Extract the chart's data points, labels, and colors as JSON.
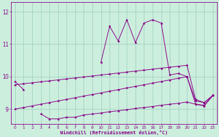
{
  "xlabel": "Windchill (Refroidissement éolien,°C)",
  "background_color": "#cceedd",
  "grid_color": "#99ccbb",
  "line_color": "#880088",
  "xlim": [
    -0.5,
    23.5
  ],
  "ylim": [
    8.55,
    12.3
  ],
  "yticks": [
    9,
    10,
    11,
    12
  ],
  "xticks": [
    0,
    1,
    2,
    3,
    4,
    5,
    6,
    7,
    8,
    9,
    10,
    11,
    12,
    13,
    14,
    15,
    16,
    17,
    18,
    19,
    20,
    21,
    22,
    23
  ],
  "figsize": [
    3.2,
    2.0
  ],
  "dpi": 100,
  "y_main": [
    9.85,
    9.6,
    null,
    null,
    null,
    null,
    null,
    null,
    null,
    null,
    10.45,
    11.55,
    11.1,
    11.75,
    11.05,
    11.65,
    11.75,
    11.65,
    10.05,
    10.1,
    10.0,
    9.15,
    9.1,
    9.42
  ],
  "y_line2": [
    null,
    null,
    null,
    8.85,
    8.7,
    8.7,
    8.75,
    8.75,
    8.82,
    8.85,
    8.88,
    8.92,
    8.95,
    8.98,
    9.02,
    9.05,
    9.08,
    9.12,
    9.15,
    9.18,
    9.22,
    9.15,
    9.12,
    9.42
  ],
  "y_trend1": [
    9.0,
    9.05,
    9.1,
    9.15,
    9.2,
    9.25,
    9.3,
    9.35,
    9.4,
    9.45,
    9.5,
    9.55,
    9.6,
    9.65,
    9.7,
    9.75,
    9.8,
    9.85,
    9.9,
    9.95,
    10.0,
    9.25,
    9.2,
    9.42
  ],
  "y_trend2": [
    9.75,
    9.78,
    9.81,
    9.84,
    9.87,
    9.9,
    9.93,
    9.96,
    9.99,
    10.02,
    10.05,
    10.08,
    10.11,
    10.14,
    10.17,
    10.2,
    10.23,
    10.26,
    10.29,
    10.32,
    10.35,
    9.3,
    9.2,
    9.42
  ]
}
